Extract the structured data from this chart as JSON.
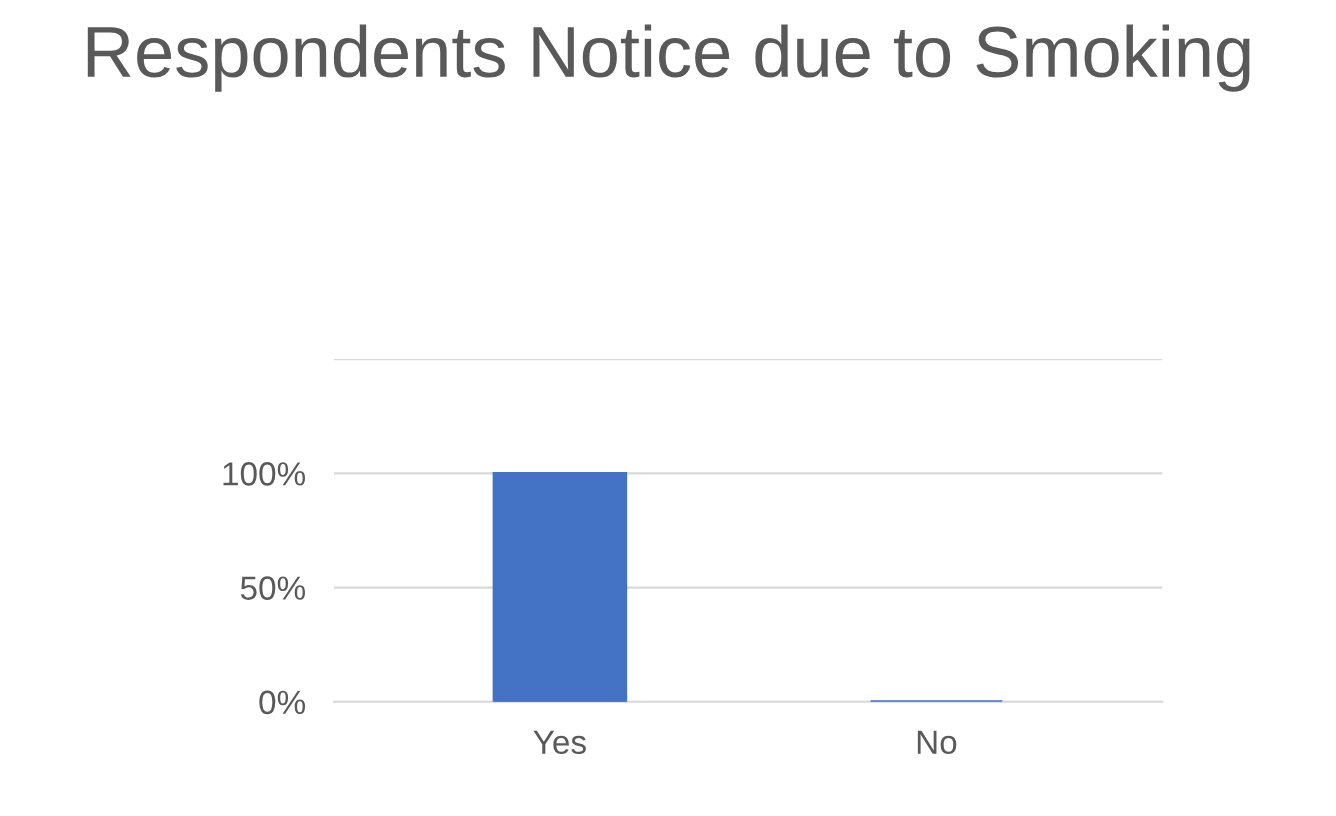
{
  "chart_data": {
    "type": "bar",
    "title": "Respondents Notice due to Smoking",
    "categories": [
      "Yes",
      "No"
    ],
    "values": [
      100,
      0
    ],
    "color": "#4472c4",
    "ylim": [
      0,
      150
    ],
    "yticks": [
      {
        "value": 0,
        "label": "0%"
      },
      {
        "value": 50,
        "label": "50%"
      },
      {
        "value": 100,
        "label": "100%"
      },
      {
        "value": 150,
        "label": null
      }
    ],
    "grid": "y"
  }
}
